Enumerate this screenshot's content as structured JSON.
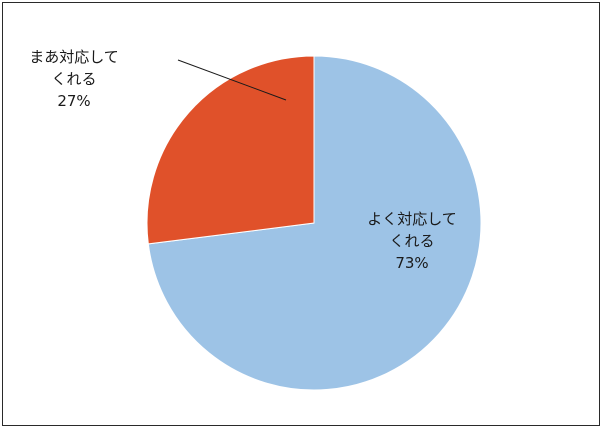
{
  "chart_data": {
    "type": "pie",
    "title": "",
    "slices": [
      {
        "label_line1": "よく対応して",
        "label_line2": "くれる",
        "percent_text": "73%",
        "value": 73,
        "color": "#9dc3e6"
      },
      {
        "label_line1": "まあ対応して",
        "label_line2": "くれる",
        "percent_text": "27%",
        "value": 27,
        "color": "#e0512a"
      }
    ],
    "start_angle": "12 o'clock",
    "direction": "clockwise",
    "legend": "none",
    "data_labels": "category name and percentage",
    "leader_line": "on the 27% slice"
  }
}
